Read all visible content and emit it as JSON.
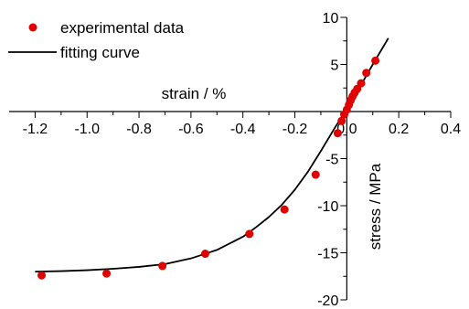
{
  "chart_data": {
    "type": "scatter",
    "xlabel": "strain / %",
    "ylabel": "stress / MPa",
    "xlim": [
      -1.3,
      0.4
    ],
    "ylim": [
      -20,
      10
    ],
    "x_ticks": [
      -1.2,
      -1.0,
      -0.8,
      -0.6,
      -0.4,
      -0.2,
      0.0,
      0.2,
      0.4
    ],
    "x_tick_labels": [
      "-1.2",
      "-1.0",
      "-0.8",
      "-0.6",
      "-0.4",
      "-0.2",
      "0.0",
      "0.2",
      "0.4"
    ],
    "y_ticks": [
      -20,
      -15,
      -10,
      -5,
      0,
      5,
      10
    ],
    "y_tick_labels": [
      "-20",
      "-15",
      "-10",
      "-5",
      "0",
      "5",
      "10"
    ],
    "legend_position": "top-left",
    "grid": false,
    "series": [
      {
        "name": "experimental data",
        "kind": "points",
        "color": "#e00000",
        "x": [
          -1.175,
          -0.925,
          -0.71,
          -0.545,
          -0.375,
          -0.24,
          -0.12,
          -0.035,
          -0.02,
          -0.01,
          0.0,
          0.008,
          0.015,
          0.022,
          0.03,
          0.04,
          0.055,
          0.075,
          0.11
        ],
        "y": [
          -17.4,
          -17.2,
          -16.4,
          -15.1,
          -13.0,
          -10.4,
          -6.7,
          -2.3,
          -1.0,
          -0.3,
          0.2,
          0.7,
          1.2,
          1.6,
          2.0,
          2.4,
          3.0,
          4.1,
          5.4
        ]
      },
      {
        "name": "fitting curve",
        "kind": "line",
        "color": "#000000",
        "x": [
          -1.2,
          -1.1,
          -1.0,
          -0.9,
          -0.8,
          -0.7,
          -0.6,
          -0.5,
          -0.4,
          -0.35,
          -0.3,
          -0.25,
          -0.2,
          -0.15,
          -0.1,
          -0.05,
          0.0,
          0.05,
          0.1,
          0.16
        ],
        "y": [
          -17.0,
          -16.95,
          -16.85,
          -16.7,
          -16.5,
          -16.2,
          -15.6,
          -14.7,
          -13.3,
          -12.3,
          -11.2,
          -9.9,
          -8.3,
          -6.4,
          -4.2,
          -1.9,
          0.3,
          2.6,
          5.0,
          7.8
        ]
      }
    ]
  }
}
